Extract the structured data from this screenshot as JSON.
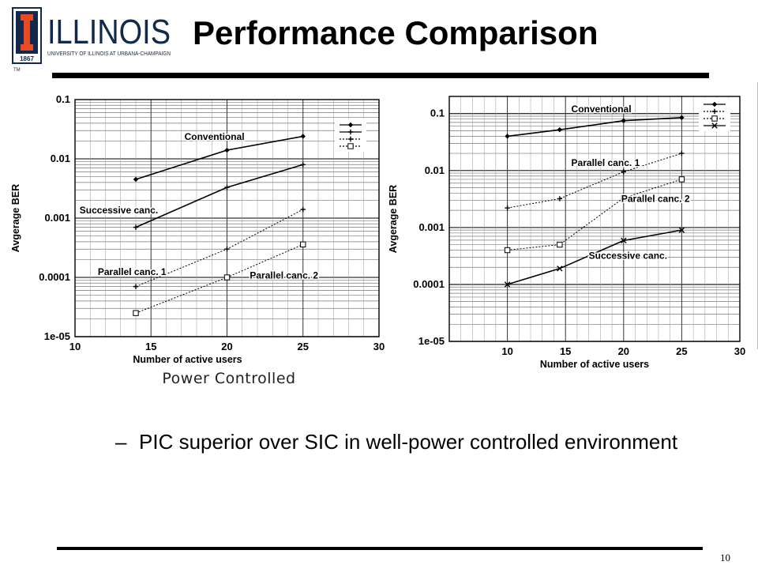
{
  "logo": {
    "wordmark": "ILLINOIS",
    "subtitle": "UNIVERSITY OF ILLINOIS AT URBANA-CHAMPAIGN",
    "year": "1867",
    "tm": "TM"
  },
  "slide": {
    "title": "Performance Comparison",
    "caption": "Power Controlled",
    "bullet_dash": "–",
    "bullet_text": "PIC superior over SIC in well-power controlled environment",
    "page_number": "10"
  },
  "chart_data": [
    {
      "type": "line",
      "xlabel": "Number of active users",
      "ylabel": "Avgerage BER",
      "xlim": [
        10,
        30
      ],
      "ylim": [
        1e-05,
        0.1
      ],
      "yscale": "log",
      "xticks": [
        10,
        15,
        20,
        25,
        30
      ],
      "xtick_labels": [
        "10",
        "15",
        "20",
        "25",
        "30"
      ],
      "yticks": [
        0.1,
        0.01,
        0.001,
        0.0001,
        1e-05
      ],
      "ytick_labels": [
        "0.1",
        "0.01",
        "0.001",
        "0.0001",
        "1e-05"
      ],
      "grid": true,
      "legend_position": "top-right",
      "series": [
        {
          "name": "Conventional",
          "marker": "diamond",
          "dash": "solid",
          "x": [
            14,
            20,
            25
          ],
          "y": [
            0.0045,
            0.014,
            0.024
          ]
        },
        {
          "name": "Successive canc.",
          "marker": "plus",
          "dash": "solid",
          "x": [
            14,
            20,
            25
          ],
          "y": [
            0.0007,
            0.0033,
            0.008
          ]
        },
        {
          "name": "Parallel canc. 1",
          "marker": "plus",
          "dash": "dotted",
          "x": [
            14,
            20,
            25
          ],
          "y": [
            7e-05,
            0.0003,
            0.0014
          ]
        },
        {
          "name": "Parallel canc. 2",
          "marker": "square",
          "dash": "dotted",
          "x": [
            14,
            20,
            25
          ],
          "y": [
            2.5e-05,
            0.0001,
            0.00036
          ]
        }
      ],
      "annotations": [
        {
          "text": "Conventional",
          "x": 17.2,
          "y": 0.021
        },
        {
          "text": "Successive canc.",
          "x": 10.3,
          "y": 0.0012
        },
        {
          "text": "Parallel canc. 1",
          "x": 11.5,
          "y": 0.00011
        },
        {
          "text": "Parallel canc. 2",
          "x": 21.5,
          "y": 9.5e-05
        }
      ]
    },
    {
      "type": "line",
      "xlabel": "Number of active users",
      "ylabel": "Avgerage BER",
      "xlim": [
        5,
        30
      ],
      "ylim": [
        1e-05,
        0.2
      ],
      "yscale": "log",
      "xticks": [
        10,
        15,
        20,
        25,
        30
      ],
      "xtick_labels": [
        "10",
        "15",
        "20",
        "25",
        "30"
      ],
      "yticks": [
        0.1,
        0.01,
        0.001,
        0.0001,
        1e-05
      ],
      "ytick_labels": [
        "0.1",
        "0.01",
        "0.001",
        "0.0001",
        "1e-05"
      ],
      "grid": true,
      "legend_position": "top-right",
      "series": [
        {
          "name": "Conventional",
          "marker": "diamond",
          "dash": "solid",
          "x": [
            10,
            14.5,
            20,
            25
          ],
          "y": [
            0.04,
            0.052,
            0.075,
            0.085
          ]
        },
        {
          "name": "Parallel canc. 1",
          "marker": "plus",
          "dash": "dotted",
          "x": [
            10,
            14.5,
            20,
            25
          ],
          "y": [
            0.0022,
            0.0032,
            0.0095,
            0.02
          ]
        },
        {
          "name": "Parallel canc. 2",
          "marker": "square",
          "dash": "dotted",
          "x": [
            10,
            14.5,
            20,
            25
          ],
          "y": [
            0.0004,
            0.0005,
            0.0033,
            0.007
          ]
        },
        {
          "name": "Successive canc.",
          "marker": "cross",
          "dash": "solid",
          "x": [
            10,
            14.5,
            20,
            25
          ],
          "y": [
            0.0001,
            0.00019,
            0.00059,
            0.0009
          ]
        }
      ],
      "annotations": [
        {
          "text": "Conventional",
          "x": 15.5,
          "y": 0.105
        },
        {
          "text": "Parallel canc. 1",
          "x": 15.5,
          "y": 0.012
        },
        {
          "text": "Parallel canc. 2",
          "x": 19.8,
          "y": 0.0028
        },
        {
          "text": "Successive canc.",
          "x": 17,
          "y": 0.00028
        }
      ]
    }
  ]
}
